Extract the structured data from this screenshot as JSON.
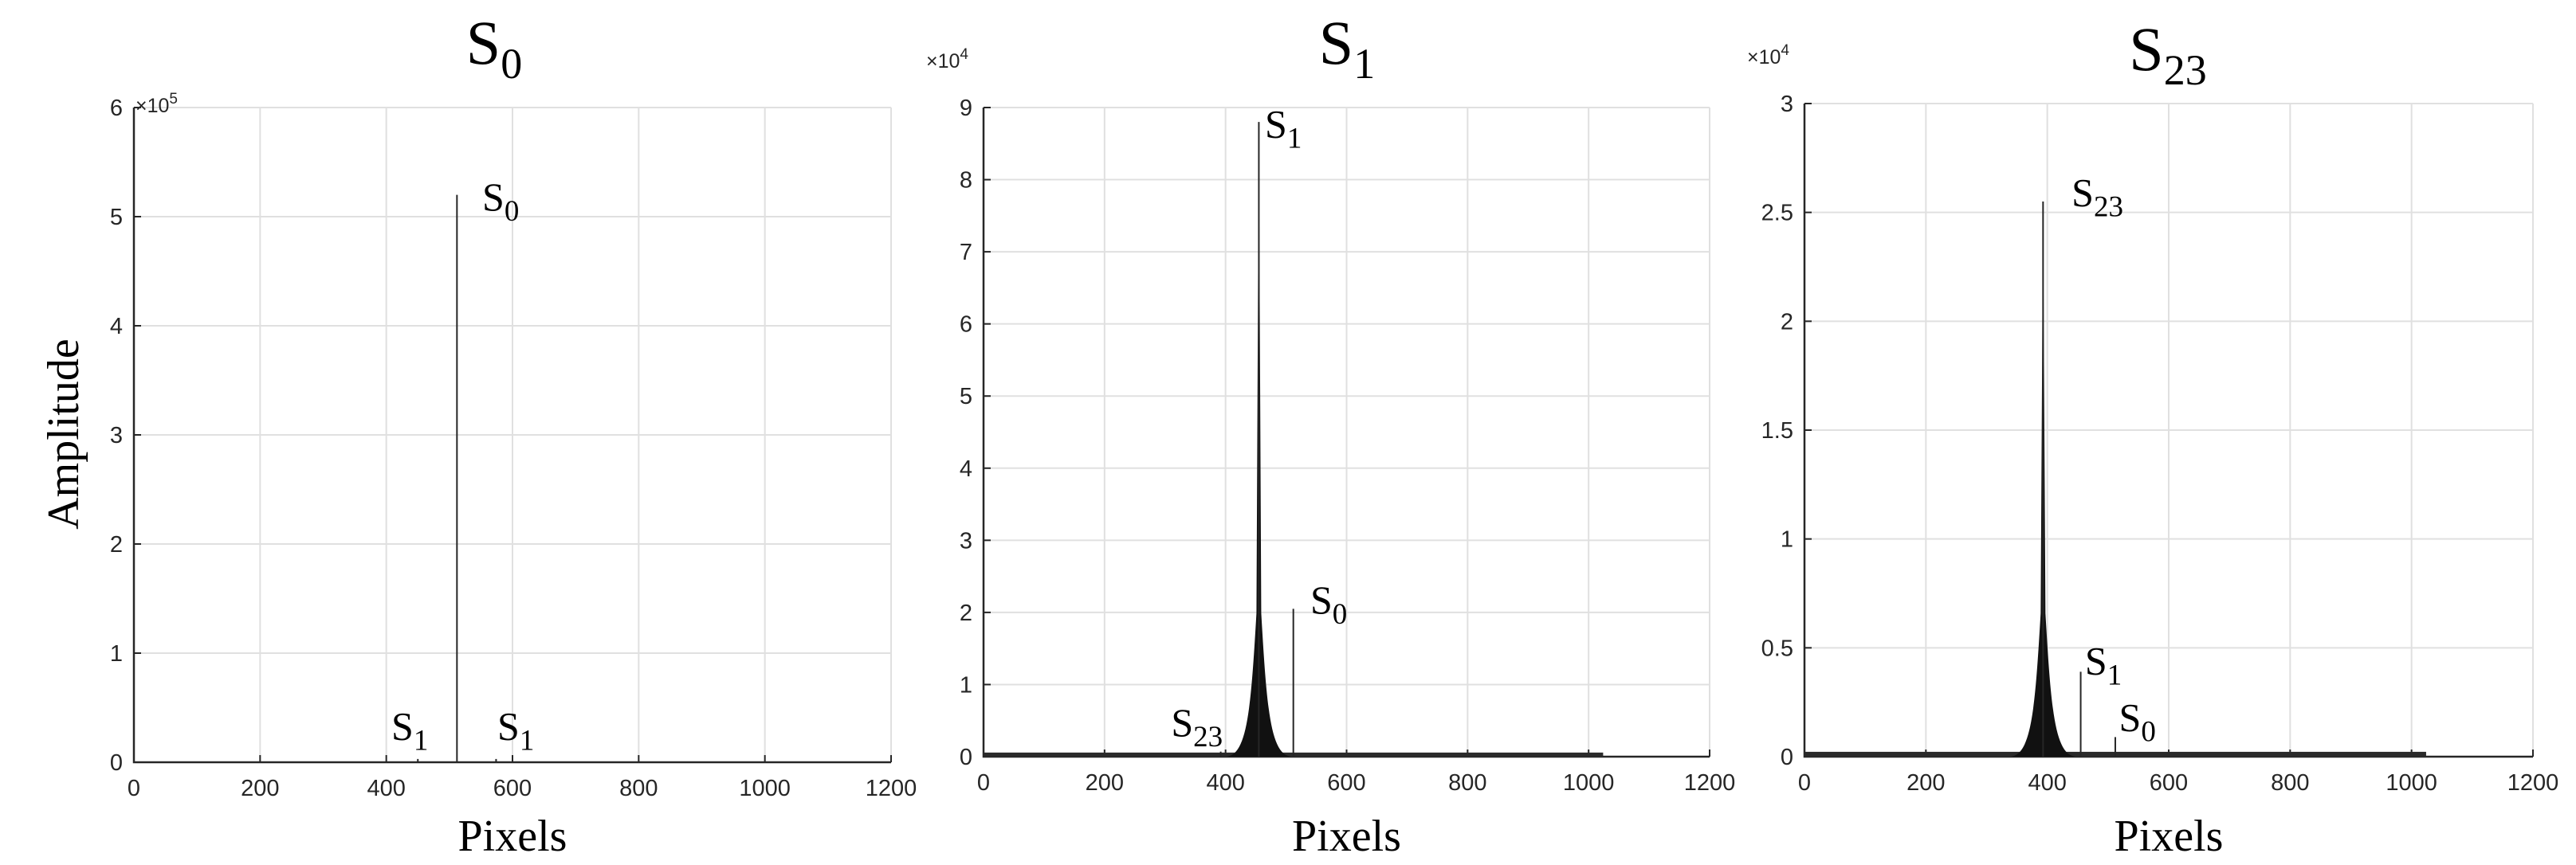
{
  "figure": {
    "ylabel": "Amplitude",
    "xlabel": "Pixels"
  },
  "chart_data": [
    {
      "type": "line",
      "title": "S",
      "title_sub": "0",
      "xlabel": "Pixels",
      "ylabel": "Amplitude",
      "xlim": [
        0,
        1200
      ],
      "ylim": [
        0,
        600000
      ],
      "exponent_base": "×10",
      "exponent_power": "5",
      "xticks": [
        0,
        200,
        400,
        600,
        800,
        1000,
        1200
      ],
      "xtick_labels": [
        "0",
        "200",
        "400",
        "600",
        "800",
        "1000",
        "1200"
      ],
      "yticks": [
        0,
        100000,
        200000,
        300000,
        400000,
        500000,
        600000
      ],
      "ytick_labels": [
        "0",
        "1",
        "2",
        "3",
        "4",
        "5",
        "6"
      ],
      "grid": true,
      "series": [
        {
          "color": "#000000",
          "peaks": [
            {
              "x": 512,
              "y": 520000
            },
            {
              "x": 450,
              "y": 3000
            },
            {
              "x": 574,
              "y": 3000
            }
          ],
          "baseline": {
            "x": [
              0,
              0
            ],
            "y": 0
          }
        }
      ],
      "annotations": [
        {
          "text": "S",
          "sub": "0",
          "x": 552,
          "y": 500000
        },
        {
          "text": "S",
          "sub": "1",
          "x": 408,
          "y": 15000
        },
        {
          "text": "S",
          "sub": "1",
          "x": 576,
          "y": 15000
        }
      ]
    },
    {
      "type": "line",
      "title": "S",
      "title_sub": "1",
      "xlabel": "Pixels",
      "ylabel": "",
      "xlim": [
        0,
        1200
      ],
      "ylim": [
        0,
        90000
      ],
      "exponent_base": "×10",
      "exponent_power": "4",
      "xticks": [
        0,
        200,
        400,
        600,
        800,
        1000,
        1200
      ],
      "xtick_labels": [
        "0",
        "200",
        "400",
        "600",
        "800",
        "1000",
        "1200"
      ],
      "yticks": [
        0,
        10000,
        20000,
        30000,
        40000,
        50000,
        60000,
        70000,
        80000,
        90000
      ],
      "ytick_labels": [
        "0",
        "1",
        "2",
        "3",
        "4",
        "5",
        "6",
        "7",
        "8",
        "9"
      ],
      "grid": true,
      "series": [
        {
          "color": "#000000",
          "peaks": [
            {
              "x": 455,
              "y": 88000
            },
            {
              "x": 512,
              "y": 20500
            },
            {
              "x": 392,
              "y": 700
            }
          ],
          "baseline": {
            "x": [
              0,
              1024
            ],
            "y": 350
          }
        }
      ],
      "annotations": [
        {
          "text": "S",
          "sub": "1",
          "x": 465,
          "y": 85000
        },
        {
          "text": "S",
          "sub": "0",
          "x": 540,
          "y": 19000
        },
        {
          "text": "S",
          "sub": "23",
          "x": 310,
          "y": 2000
        }
      ]
    },
    {
      "type": "line",
      "title": "S",
      "title_sub": "23",
      "xlabel": "Pixels",
      "ylabel": "",
      "xlim": [
        0,
        1200
      ],
      "ylim": [
        0,
        30000
      ],
      "exponent_base": "×10",
      "exponent_power": "4",
      "xticks": [
        0,
        200,
        400,
        600,
        800,
        1000,
        1200
      ],
      "xtick_labels": [
        "0",
        "200",
        "400",
        "600",
        "800",
        "1000",
        "1200"
      ],
      "yticks": [
        0,
        5000,
        10000,
        15000,
        20000,
        25000,
        30000
      ],
      "ytick_labels": [
        "0",
        "0.5",
        "1",
        "1.5",
        "2",
        "2.5",
        "3"
      ],
      "grid": true,
      "series": [
        {
          "color": "#000000",
          "peaks": [
            {
              "x": 393,
              "y": 25500
            },
            {
              "x": 455,
              "y": 3900
            },
            {
              "x": 512,
              "y": 900
            }
          ],
          "baseline": {
            "x": [
              0,
              1024
            ],
            "y": 150
          }
        }
      ],
      "annotations": [
        {
          "text": "S",
          "sub": "23",
          "x": 440,
          "y": 25000
        },
        {
          "text": "S",
          "sub": "1",
          "x": 462,
          "y": 3500
        },
        {
          "text": "S",
          "sub": "0",
          "x": 518,
          "y": 900
        }
      ]
    }
  ]
}
